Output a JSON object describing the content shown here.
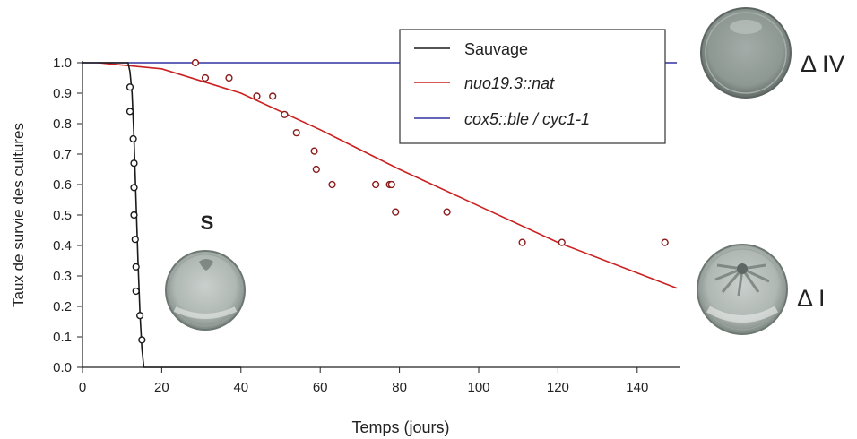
{
  "chart_data": {
    "type": "line",
    "xlabel": "Temps (jours)",
    "ylabel": "Taux de survie des cultures",
    "xlim": [
      0,
      150
    ],
    "ylim": [
      0,
      1.0
    ],
    "x_ticks": [
      "0",
      "20",
      "40",
      "60",
      "80",
      "100",
      "120",
      "140"
    ],
    "y_ticks": [
      "0.0",
      "0.1",
      "0.2",
      "0.3",
      "0.4",
      "0.5",
      "0.6",
      "0.7",
      "0.8",
      "0.9",
      "1.0"
    ],
    "grid": false,
    "legend_position": "top-center",
    "series": [
      {
        "name": "Sauvage",
        "color": "#1a1a1a",
        "fit_curve": [
          [
            0,
            1.0
          ],
          [
            11.5,
            1.0
          ],
          [
            12,
            0.97
          ],
          [
            12.5,
            0.9
          ],
          [
            13,
            0.75
          ],
          [
            13.5,
            0.55
          ],
          [
            14,
            0.35
          ],
          [
            14.5,
            0.18
          ],
          [
            15,
            0.06
          ],
          [
            15.5,
            0.0
          ],
          [
            40,
            0.0
          ]
        ],
        "points": [
          [
            12,
            0.92
          ],
          [
            12,
            0.84
          ],
          [
            12.8,
            0.75
          ],
          [
            13,
            0.67
          ],
          [
            13,
            0.59
          ],
          [
            13,
            0.5
          ],
          [
            13.3,
            0.42
          ],
          [
            13.5,
            0.33
          ],
          [
            13.5,
            0.25
          ],
          [
            14.5,
            0.17
          ],
          [
            15,
            0.09
          ]
        ]
      },
      {
        "name": "nuo19.3::nat",
        "color": "#cc2020",
        "fit_curve": [
          [
            4,
            1.0
          ],
          [
            20,
            0.98
          ],
          [
            40,
            0.9
          ],
          [
            60,
            0.78
          ],
          [
            80,
            0.65
          ],
          [
            100,
            0.53
          ],
          [
            120,
            0.41
          ],
          [
            140,
            0.31
          ],
          [
            150,
            0.26
          ]
        ],
        "points": [
          [
            28.5,
            1.0
          ],
          [
            31,
            0.95
          ],
          [
            37,
            0.95
          ],
          [
            44,
            0.89
          ],
          [
            48,
            0.89
          ],
          [
            51,
            0.83
          ],
          [
            54,
            0.77
          ],
          [
            58.5,
            0.71
          ],
          [
            59,
            0.65
          ],
          [
            63,
            0.6
          ],
          [
            74,
            0.6
          ],
          [
            77.5,
            0.6
          ],
          [
            78,
            0.6
          ],
          [
            79,
            0.51
          ],
          [
            92,
            0.51
          ],
          [
            111,
            0.41
          ],
          [
            121,
            0.41
          ],
          [
            147,
            0.41
          ]
        ]
      },
      {
        "name": "cox5::ble / cyc1-1",
        "color": "#3030a0",
        "fit_curve": [
          [
            0,
            1.0
          ],
          [
            150,
            1.0
          ]
        ],
        "points": []
      }
    ]
  },
  "annotations": {
    "s_label": "S",
    "delta_iv_label": "Δ IV",
    "delta_i_label": "Δ I"
  },
  "colors": {
    "axis": "#222222",
    "plate_rim": "#6e7873",
    "plate_surface": "#b4bcb8",
    "marker_fill": "#ffffff"
  }
}
